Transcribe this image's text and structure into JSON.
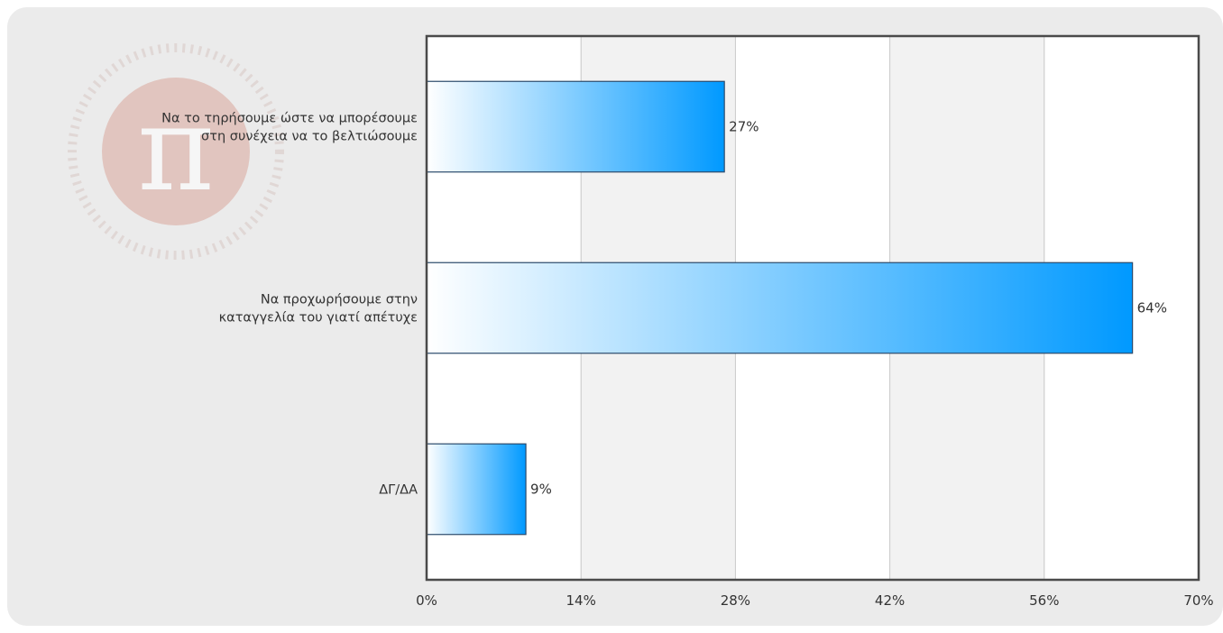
{
  "chart_data": {
    "type": "bar",
    "orientation": "horizontal",
    "categories": [
      [
        "Να το τηρήσουμε ώστε να μπορέσουμε",
        "στη συνέχεια να το βελτιώσουμε"
      ],
      [
        "Να προχωρήσουμε στην",
        "καταγγελία του γιατί απέτυχε"
      ],
      [
        "ΔΓ/ΔΑ"
      ]
    ],
    "values": [
      27,
      64,
      9
    ],
    "value_labels": [
      "27%",
      "64%",
      "9%"
    ],
    "xlim": [
      0,
      70
    ],
    "xticks": [
      0,
      14,
      28,
      42,
      56,
      70
    ],
    "xtick_labels": [
      "0%",
      "14%",
      "28%",
      "42%",
      "56%",
      "70%"
    ],
    "grid": "vertical",
    "colors": {
      "bar_start": "#ffffff",
      "bar_end": "#0099ff",
      "bar_border": "#2b4a6b",
      "plot_border": "#4a4a4a",
      "band_light": "#ffffff",
      "band_dark": "#f2f2f2",
      "grid_line": "#c8c8c8"
    }
  },
  "watermark": {
    "symbol": "π",
    "colors": {
      "disc": "#d9a79c",
      "symbol": "#ffffff"
    }
  }
}
